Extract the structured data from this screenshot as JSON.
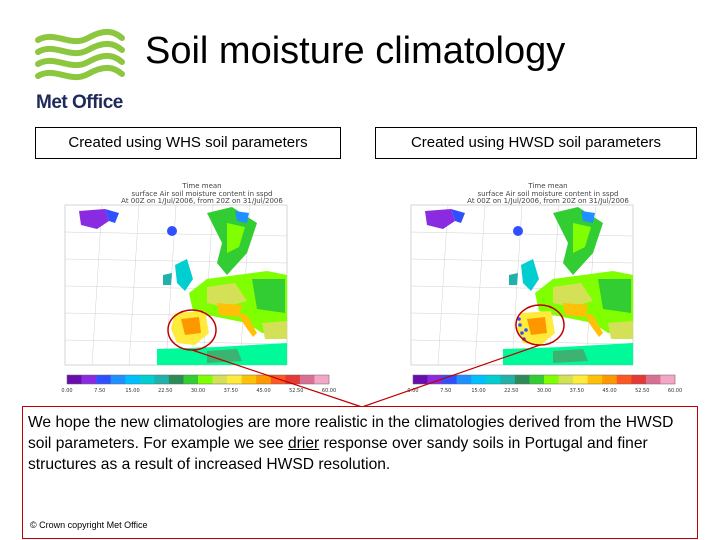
{
  "header": {
    "title": "Soil moisture climatology",
    "logo_text": "Met Office"
  },
  "panels": [
    {
      "label": "Created using WHS soil parameters",
      "map_header": [
        "Time mean",
        "surface Air soil moisture content in sspd",
        "At 00Z on 1/Jul/2006, from 20Z on 31/Jul/2006"
      ],
      "colorbar_ticks": [
        "0.00",
        "7.50",
        "15.00",
        "22.50",
        "30.00",
        "37.50",
        "45.00",
        "52.50",
        "60.00"
      ]
    },
    {
      "label": "Created using HWSD soil parameters",
      "map_header": [
        "Time mean",
        "surface Air soil moisture content in sspd",
        "At 00Z on 1/Jul/2006, from 20Z on 31/Jul/2006"
      ],
      "colorbar_ticks": [
        "0.00",
        "7.50",
        "15.00",
        "22.50",
        "30.00",
        "37.50",
        "45.00",
        "52.50",
        "60.00"
      ]
    }
  ],
  "callout": {
    "text_before": "We hope the new climatologies are more realistic in the climatologies derived from the HWSD soil parameters. For example we see ",
    "underlined": "drier",
    "text_after": " response over sandy soils in Portugal and finer structures as a result of increased HWSD resolution."
  },
  "footer": {
    "copyright": "© Crown copyright   Met Office"
  },
  "colors": {
    "callout_border": "#c00000",
    "logo_green": "#8dc63f",
    "logo_text": "#1f2a5a"
  }
}
